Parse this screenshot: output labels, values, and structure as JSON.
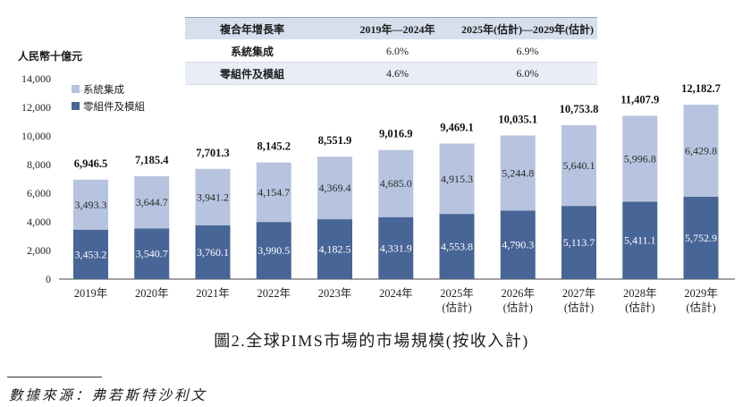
{
  "cagr_table": {
    "header": {
      "label": "複合年增長率",
      "periods": [
        "2019年—2024年",
        "2025年(估計)—2029年(估計)"
      ]
    },
    "rows": [
      {
        "label": "系統集成",
        "values": [
          "6.0%",
          "6.9%"
        ]
      },
      {
        "label": "零組件及模組",
        "values": [
          "4.6%",
          "6.0%"
        ]
      }
    ]
  },
  "chart_data": {
    "type": "bar",
    "stacked": true,
    "title": "圖2.全球PIMS市場的市場規模(按收入計)",
    "ylabel": "人民幣十億元",
    "ylim": [
      0,
      14000
    ],
    "yticks": [
      {
        "value": 0,
        "label": "0"
      },
      {
        "value": 2000,
        "label": "2,000"
      },
      {
        "value": 4000,
        "label": "4,000"
      },
      {
        "value": 6000,
        "label": "6,000"
      },
      {
        "value": 8000,
        "label": "8,000"
      },
      {
        "value": 10000,
        "label": "10,000"
      },
      {
        "value": 12000,
        "label": "12,000"
      },
      {
        "value": 14000,
        "label": "14,000"
      }
    ],
    "grid": false,
    "legend": {
      "position": "top-left"
    },
    "categories": [
      "2019年",
      "2020年",
      "2021年",
      "2022年",
      "2023年",
      "2024年",
      "2025年\n(估計)",
      "2026年\n(估計)",
      "2027年\n(估計)",
      "2028年\n(估計)",
      "2029年\n(估計)"
    ],
    "series": [
      {
        "name": "系統集成",
        "color": "#b7c4df",
        "values": [
          3493.3,
          3644.7,
          3941.2,
          4154.7,
          4369.4,
          4685.0,
          4915.3,
          5244.8,
          5640.1,
          5996.8,
          6429.8
        ],
        "labels": [
          "3,493.3",
          "3,644.7",
          "3,941.2",
          "4,154.7",
          "4,369.4",
          "4,685.0",
          "4,915.3",
          "5,244.8",
          "5,640.1",
          "5,996.8",
          "6,429.8"
        ]
      },
      {
        "name": "零組件及模組",
        "color": "#486597",
        "values": [
          3453.2,
          3540.7,
          3760.1,
          3990.5,
          4182.5,
          4331.9,
          4553.8,
          4790.3,
          5113.7,
          5411.1,
          5752.9
        ],
        "labels": [
          "3,453.2",
          "3,540.7",
          "3,760.1",
          "3,990.5",
          "4,182.5",
          "4,331.9",
          "4,553.8",
          "4,790.3",
          "5,113.7",
          "5,411.1",
          "5,752.9"
        ]
      }
    ],
    "totals": [
      6946.5,
      7185.4,
      7701.3,
      8145.2,
      8551.9,
      9016.9,
      9469.1,
      10035.1,
      10753.8,
      11407.9,
      12182.7
    ],
    "total_labels": [
      "6,946.5",
      "7,185.4",
      "7,701.3",
      "8,145.2",
      "8,551.9",
      "9,016.9",
      "9,469.1",
      "10,035.1",
      "10,753.8",
      "11,407.9",
      "12,182.7"
    ]
  },
  "source": "數據來源：弗若斯特沙利文"
}
